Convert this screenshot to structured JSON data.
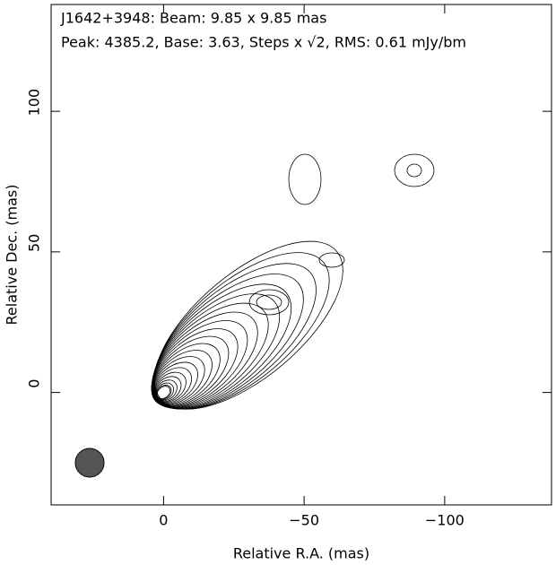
{
  "chart_data": {
    "type": "contour",
    "title_lines": [
      "J1642+3948: Beam: 9.85 x 9.85 mas",
      "Peak: 4385.2, Base: 3.63, Steps x √2, RMS: 0.61 mJy/bm"
    ],
    "x_label": "Relative R.A. (mas)",
    "y_label": "Relative Dec. (mas)",
    "xlim": [
      40,
      -138
    ],
    "ylim": [
      -40,
      138
    ],
    "xticks": [
      0,
      {
        "value": -50,
        "label": "−50"
      },
      {
        "value": -100,
        "label": "−100"
      }
    ],
    "yticks": [
      0,
      50,
      100
    ]
  }
}
